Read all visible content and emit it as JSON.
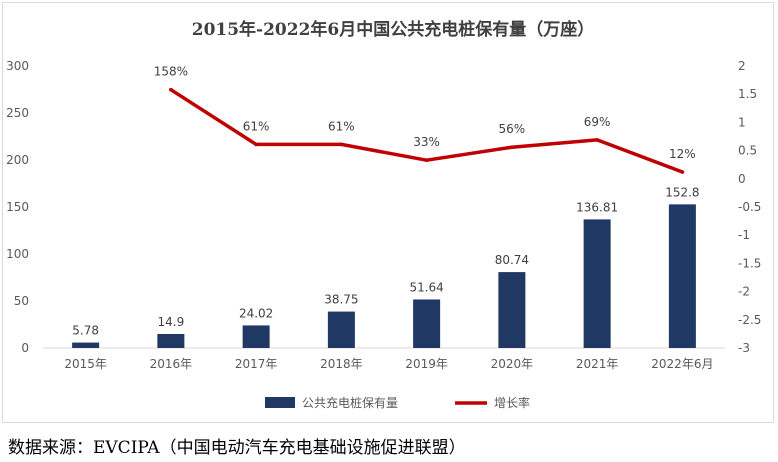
{
  "chart_data": {
    "type": "bar",
    "title": "2015年-2022年6月中国公共充电桩保有量（万座）",
    "categories": [
      "2015年",
      "2016年",
      "2017年",
      "2018年",
      "2019年",
      "2020年",
      "2021年",
      "2022年6月"
    ],
    "series": [
      {
        "name": "公共充电桩保有量",
        "type": "bar",
        "axis": "left",
        "color": "#203864",
        "values": [
          5.78,
          14.9,
          24.02,
          38.75,
          51.64,
          80.74,
          136.81,
          152.8
        ],
        "labels": [
          "5.78",
          "14.9",
          "24.02",
          "38.75",
          "51.64",
          "80.74",
          "136.81",
          "152.8"
        ]
      },
      {
        "name": "增长率",
        "type": "line",
        "axis": "right",
        "color": "#c00000",
        "values": [
          null,
          1.58,
          0.61,
          0.61,
          0.33,
          0.56,
          0.69,
          0.12
        ],
        "labels": [
          "",
          "158%",
          "61%",
          "61%",
          "33%",
          "56%",
          "69%",
          "12%"
        ]
      }
    ],
    "y_left": {
      "min": 0,
      "max": 300,
      "ticks": [
        "0",
        "50",
        "100",
        "150",
        "200",
        "250",
        "300"
      ]
    },
    "y_right": {
      "min": -3,
      "max": 2,
      "ticks": [
        "-3",
        "-2.5",
        "-2",
        "-1.5",
        "-1",
        "-0.5",
        "0",
        "0.5",
        "1",
        "1.5",
        "2"
      ]
    },
    "grid": false,
    "legend": {
      "position": "bottom"
    }
  },
  "source_text": "数据来源：EVCIPA（中国电动汽车充电基础设施促进联盟）"
}
